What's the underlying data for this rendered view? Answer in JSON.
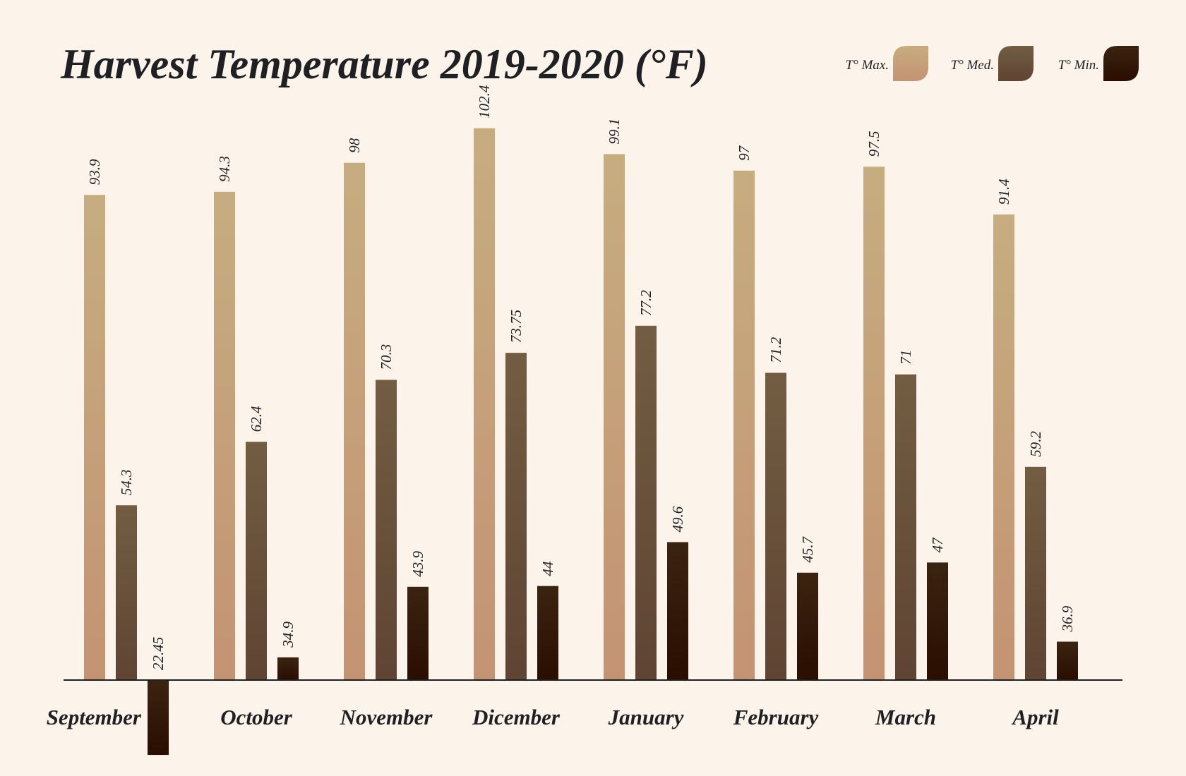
{
  "chart_data": {
    "type": "bar",
    "title": "Harvest Temperature 2019-2020 (°F)",
    "xlabel": "",
    "ylabel": "",
    "baseline": 32,
    "ylim": [
      20,
      105
    ],
    "grid": false,
    "legend_position": "top-right",
    "categories": [
      "September",
      "October",
      "November",
      "Dicember",
      "January",
      "February",
      "March",
      "April"
    ],
    "series": [
      {
        "name": "T° Max.",
        "values": [
          93.9,
          94.3,
          98,
          102.4,
          99.1,
          97,
          97.5,
          91.4
        ],
        "color_top": "#c6ad80",
        "color_bottom": "#c49373"
      },
      {
        "name": "T° Med.",
        "values": [
          54.3,
          62.4,
          70.3,
          73.75,
          77.2,
          71.2,
          71,
          59.2
        ],
        "color_top": "#725d42",
        "color_bottom": "#5f4433"
      },
      {
        "name": "T° Min.",
        "values": [
          22.45,
          34.9,
          43.9,
          44,
          49.6,
          45.7,
          47,
          36.9
        ],
        "color_top": "#3b2311",
        "color_bottom": "#2a0e00"
      }
    ]
  }
}
